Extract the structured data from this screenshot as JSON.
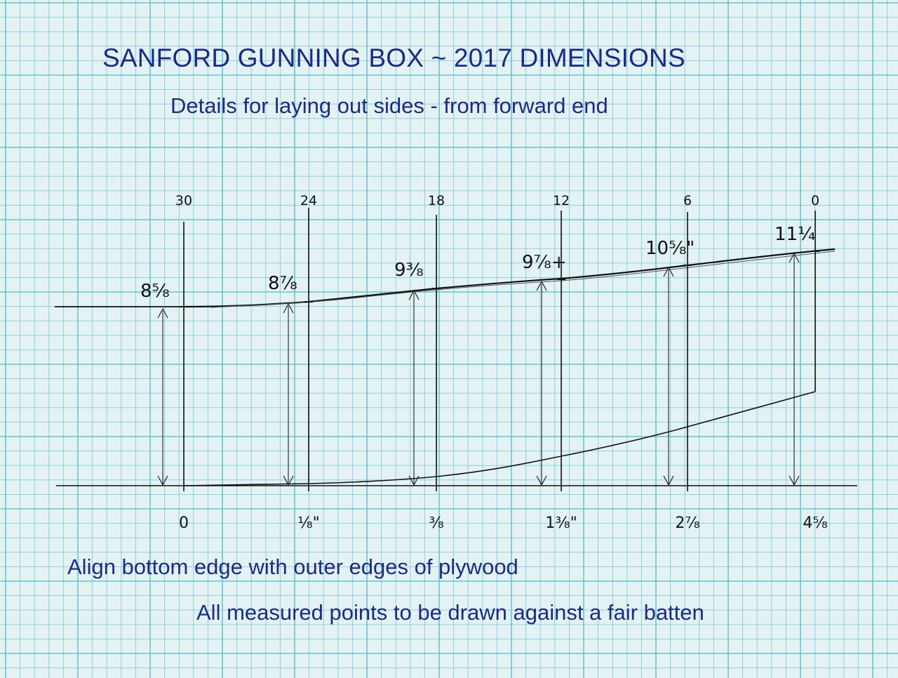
{
  "title": "SANFORD GUNNING BOX ~ 2017 DIMENSIONS",
  "subtitle": "Details for laying out sides - from forward end",
  "notes": [
    "Align bottom edge with outer edges of plywood",
    "All measured points to be drawn against a fair batten"
  ],
  "stations": [
    {
      "top_label": "30",
      "height_label": "8⁵⁄₈",
      "bottom_label": "0"
    },
    {
      "top_label": "24",
      "height_label": "8⁷⁄₈",
      "bottom_label": "¹⁄₈\""
    },
    {
      "top_label": "18",
      "height_label": "9³⁄₈",
      "bottom_label": "³⁄₈"
    },
    {
      "top_label": "12",
      "height_label": "9⁷⁄₈+",
      "bottom_label": "1³⁄₈\""
    },
    {
      "top_label": "6",
      "height_label": "10⁵⁄₈\"",
      "bottom_label": "2⁷⁄₈"
    },
    {
      "top_label": "0",
      "height_label": "11¼",
      "bottom_label": "4⁵⁄₈"
    }
  ],
  "colors": {
    "paper": "#e4f2f3",
    "grid": "#5fc4cf",
    "ink": "#1c2a86",
    "pencil": "#111111"
  }
}
